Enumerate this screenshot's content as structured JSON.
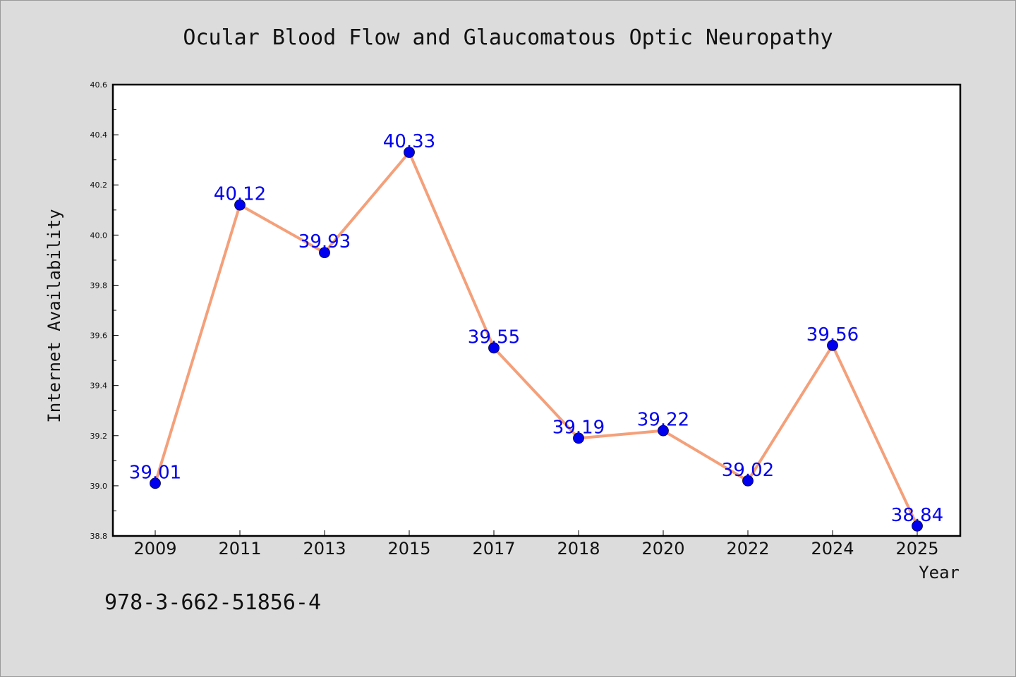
{
  "chart_data": {
    "type": "line",
    "title": "Ocular Blood Flow and Glaucomatous Optic Neuropathy",
    "xlabel": "Year",
    "ylabel": "Internet Availability",
    "categories": [
      "2009",
      "2011",
      "2013",
      "2015",
      "2017",
      "2018",
      "2020",
      "2022",
      "2024",
      "2025"
    ],
    "series": [
      {
        "values": [
          39.01,
          40.12,
          39.93,
          40.33,
          39.55,
          39.19,
          39.22,
          39.02,
          39.56,
          38.84
        ],
        "labels": [
          "39.01",
          "40.12",
          "39.93",
          "40.33",
          "39.55",
          "39.19",
          "39.22",
          "39.02",
          "39.56",
          "38.84"
        ]
      }
    ],
    "ylim": [
      38.8,
      40.6
    ],
    "yticks": [
      "38.8",
      "39.0",
      "39.2",
      "39.4",
      "39.6",
      "39.8",
      "40.0",
      "40.2",
      "40.4",
      "40.6"
    ],
    "grid": false,
    "legend": "none",
    "colors": {
      "line": "#f4a07a",
      "marker": "#0000ee",
      "data_label": "#0000ee",
      "plot_background": "#ffffff",
      "page_background": "#dcdcdc"
    }
  },
  "footer": {
    "isbn": "978-3-662-51856-4"
  }
}
